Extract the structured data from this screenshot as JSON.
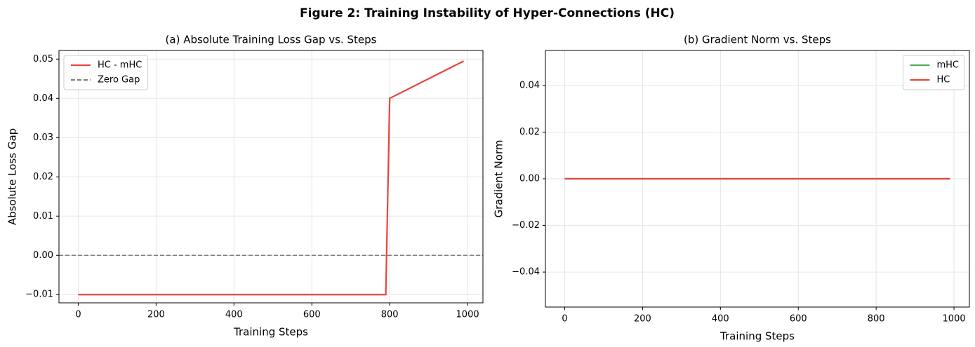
{
  "title": "Figure 2: Training Instability of Hyper-Connections (HC)",
  "chart_data": [
    {
      "type": "line",
      "title": "(a) Absolute Training Loss Gap vs. Steps",
      "x_label": "Training Steps",
      "y_label": "Absolute Loss Gap",
      "x": [
        0,
        790,
        800,
        990
      ],
      "series": [
        {
          "name": "HC - mHC",
          "color": "#e8453c",
          "values": [
            -0.01,
            -0.01,
            0.04,
            0.0495
          ]
        }
      ],
      "reference_lines": [
        {
          "name": "Zero Gap",
          "value": 0,
          "color": "#808080",
          "style": "dashed"
        }
      ],
      "xlim": [
        -49.5,
        1039.5
      ],
      "ylim": [
        -0.0121,
        0.0522
      ],
      "xticks": [
        0,
        200,
        400,
        600,
        800,
        1000
      ],
      "yticks": [
        {
          "value": -0.01,
          "label": "−0.01"
        },
        {
          "value": 0,
          "label": "0.00"
        },
        0.01,
        0.02,
        0.03,
        0.04,
        0.05
      ],
      "grid": true,
      "legend": "upper-left"
    },
    {
      "type": "line",
      "title": "(b) Gradient Norm vs. Steps",
      "x_label": "Training Steps",
      "y_label": "Gradient Norm",
      "x": [
        0,
        990
      ],
      "series": [
        {
          "name": "mHC",
          "color": "#4caf50",
          "values": [
            0,
            0
          ]
        },
        {
          "name": "HC",
          "color": "#e8453c",
          "values": [
            0,
            0
          ]
        }
      ],
      "xlim": [
        -49.5,
        1039.5
      ],
      "ylim": [
        -0.055,
        0.055
      ],
      "xticks": [
        0,
        200,
        400,
        600,
        800,
        1000
      ],
      "yticks": [
        {
          "value": -0.04,
          "label": "−0.04"
        },
        {
          "value": -0.02,
          "label": "−0.02"
        },
        {
          "value": 0,
          "label": "0.00"
        },
        0.02,
        0.04
      ],
      "grid": true,
      "legend": "upper-right"
    }
  ]
}
